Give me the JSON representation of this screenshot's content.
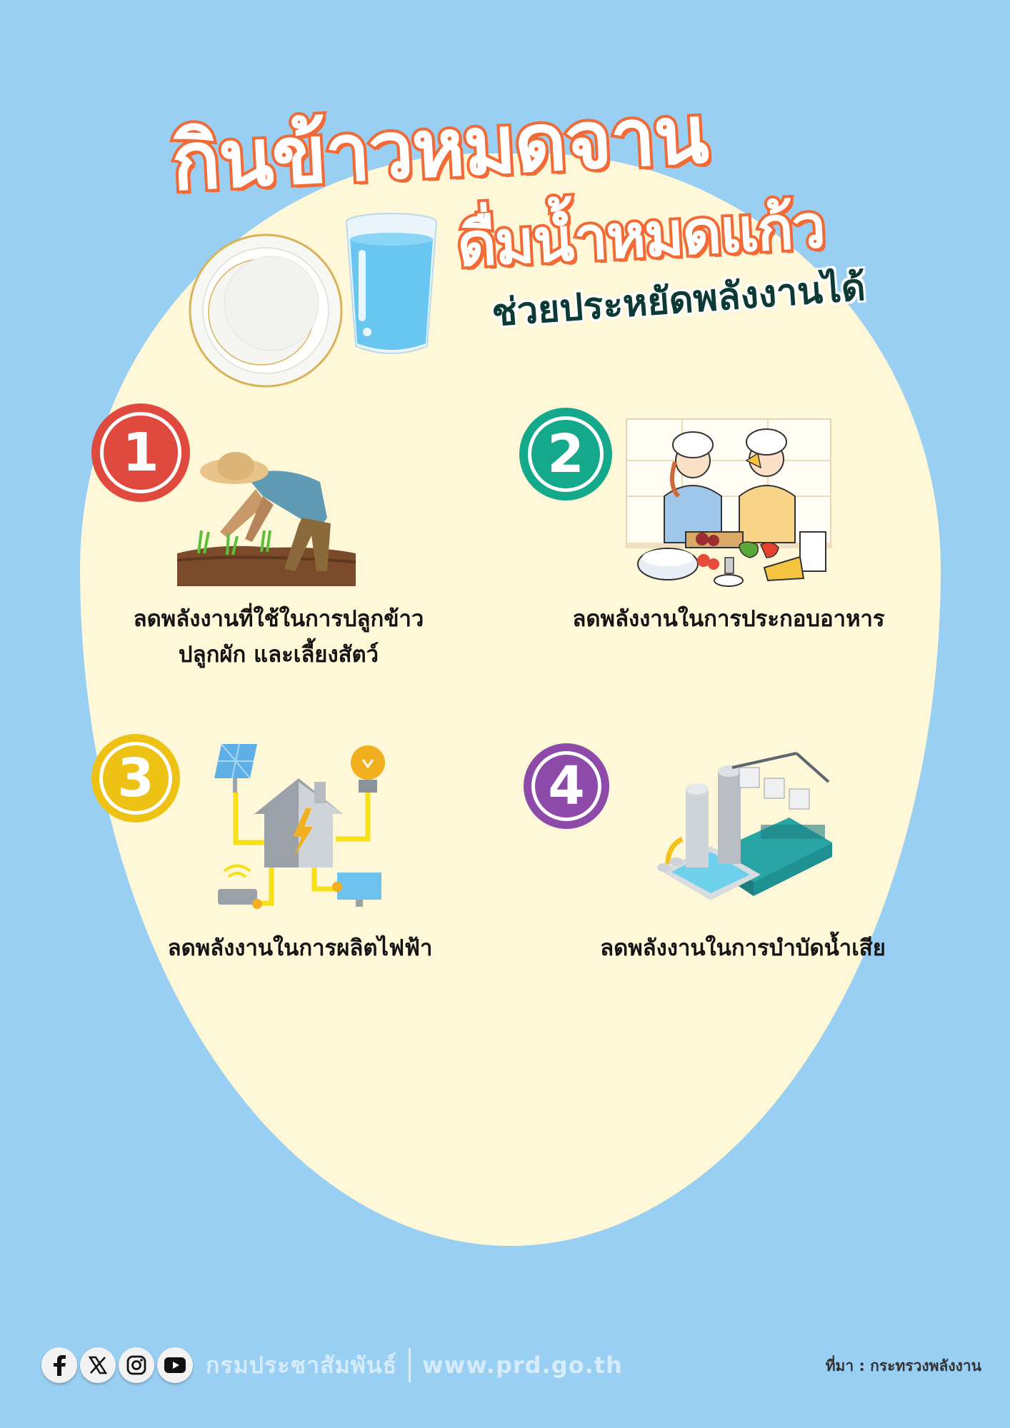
{
  "header": {
    "title_line1": "กินข้าวหมดจาน",
    "title_line2": "ดื่มน้ำหมดแก้ว",
    "subtitle": "ช่วยประหยัดพลังงานได้"
  },
  "items": [
    {
      "number": "1",
      "caption_line1": "ลดพลังงานที่ใช้ในการปลูกข้าว",
      "caption_line2": "ปลูกผัก และเลี้ยงสัตว์",
      "icon": "farmer-planting-icon",
      "color": "#e04a3e"
    },
    {
      "number": "2",
      "caption_line1": "ลดพลังงานในการประกอบอาหาร",
      "caption_line2": "",
      "icon": "chefs-cooking-icon",
      "color": "#14a98a"
    },
    {
      "number": "3",
      "caption_line1": "ลดพลังงานในการผลิตไฟฟ้า",
      "caption_line2": "",
      "icon": "smart-home-energy-icon",
      "color": "#eec214"
    },
    {
      "number": "4",
      "caption_line1": "ลดพลังงานในการบำบัดน้ำเสีย",
      "caption_line2": "",
      "icon": "wastewater-plant-icon",
      "color": "#8d4aa9"
    }
  ],
  "footer": {
    "social_icons": [
      "facebook-icon",
      "x-icon",
      "instagram-icon",
      "youtube-icon"
    ],
    "org_name": "กรมประชาสัมพันธ์",
    "url": "www.prd.go.th",
    "source": "ที่มา : กระทรวงพลังงาน"
  },
  "colors": {
    "background": "#99cff3",
    "blob": "#fef8d9",
    "title_orange": "#f26a36",
    "subtitle_green": "#0e3a35"
  }
}
